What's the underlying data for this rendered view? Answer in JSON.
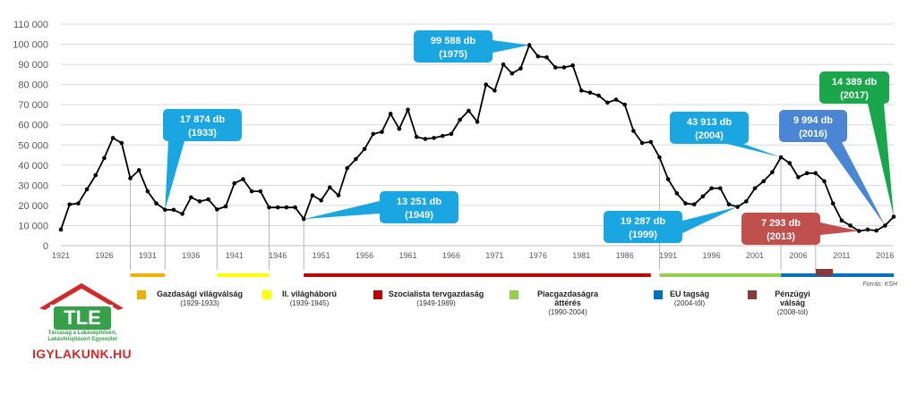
{
  "chart_data": {
    "type": "line",
    "ylim": [
      0,
      110000
    ],
    "yticks": [
      0,
      10000,
      20000,
      30000,
      40000,
      50000,
      60000,
      70000,
      80000,
      90000,
      100000,
      110000
    ],
    "ytick_labels": [
      "0",
      "10 000",
      "20 000",
      "30 000",
      "40 000",
      "50 000",
      "60 000",
      "70 000",
      "80 000",
      "90 000",
      "100 000",
      "110 000"
    ],
    "xlim": [
      1921,
      2017
    ],
    "xtick_labels": [
      "1921",
      "1926",
      "1931",
      "1936",
      "1941",
      "1946",
      "1951",
      "1956",
      "1961",
      "1966",
      "1971",
      "1976",
      "1981",
      "1986",
      "1991",
      "1996",
      "2001",
      "2006",
      "2011",
      "2016"
    ],
    "grid": true,
    "series": [
      {
        "color": "#000000",
        "x": [
          1921,
          1922,
          1923,
          1924,
          1925,
          1926,
          1927,
          1928,
          1929,
          1930,
          1931,
          1932,
          1933,
          1934,
          1935,
          1936,
          1937,
          1938,
          1939,
          1940,
          1941,
          1942,
          1943,
          1944,
          1945,
          1946,
          1947,
          1948,
          1949,
          1950,
          1951,
          1952,
          1953,
          1954,
          1955,
          1956,
          1957,
          1958,
          1959,
          1960,
          1961,
          1962,
          1963,
          1964,
          1965,
          1966,
          1967,
          1968,
          1969,
          1970,
          1971,
          1972,
          1973,
          1974,
          1975,
          1976,
          1977,
          1978,
          1979,
          1980,
          1981,
          1982,
          1983,
          1984,
          1985,
          1986,
          1987,
          1988,
          1989,
          1990,
          1991,
          1992,
          1993,
          1994,
          1995,
          1996,
          1997,
          1998,
          1999,
          2000,
          2001,
          2002,
          2003,
          2004,
          2005,
          2006,
          2007,
          2008,
          2009,
          2010,
          2011,
          2012,
          2013,
          2014,
          2015,
          2016,
          2017
        ],
        "values": [
          8000,
          20500,
          21000,
          28000,
          35000,
          43500,
          53500,
          51000,
          33500,
          37500,
          27000,
          21000,
          17874,
          17800,
          15800,
          24000,
          22000,
          23000,
          18000,
          19500,
          31000,
          33000,
          27000,
          27000,
          19000,
          19000,
          19000,
          19000,
          13251,
          25000,
          22500,
          29000,
          25000,
          38500,
          43000,
          48000,
          55500,
          56500,
          65500,
          58000,
          67500,
          54000,
          53000,
          53500,
          54500,
          55500,
          62500,
          67000,
          61500,
          80000,
          77000,
          90000,
          85500,
          88000,
          99588,
          94000,
          93500,
          88500,
          88500,
          89500,
          77000,
          76000,
          74500,
          71000,
          72500,
          70000,
          57000,
          51000,
          51500,
          43913,
          33000,
          26000,
          21000,
          20500,
          24500,
          28500,
          28500,
          20500,
          19287,
          22000,
          28500,
          32000,
          36500,
          43913,
          41000,
          34000,
          36000,
          36000,
          32000,
          21000,
          12500,
          10000,
          7293,
          8000,
          7500,
          9994,
          14389
        ]
      }
    ],
    "annotations": [
      {
        "text1": "17 874 db",
        "text2": "(1933)",
        "x": 1933,
        "y": 17874,
        "color": "#1aa6e0"
      },
      {
        "text1": "13 251 db",
        "text2": "(1949)",
        "x": 1949,
        "y": 13251,
        "color": "#1aa6e0"
      },
      {
        "text1": "99 588 db",
        "text2": "(1975)",
        "x": 1975,
        "y": 99588,
        "color": "#1aa6e0"
      },
      {
        "text1": "19 287 db",
        "text2": "(1999)",
        "x": 1999,
        "y": 19287,
        "color": "#1aa6e0"
      },
      {
        "text1": "43 913 db",
        "text2": "(2004)",
        "x": 2004,
        "y": 43913,
        "color": "#1aa6e0"
      },
      {
        "text1": "9 994 db",
        "text2": "(2016)",
        "x": 2016,
        "y": 9994,
        "color": "#4a86d4"
      },
      {
        "text1": "7 293 db",
        "text2": "(2013)",
        "x": 2013,
        "y": 7293,
        "color": "#c0504d"
      },
      {
        "text1": "14 389 db",
        "text2": "(2017)",
        "x": 2017,
        "y": 14389,
        "color": "#1aa64a"
      }
    ],
    "periods": [
      {
        "name": "Gazdasági világválság",
        "range": "(1929-1933)",
        "start": 1929,
        "end": 1933,
        "color": "#f0b000"
      },
      {
        "name": "II. világháború",
        "range": "(1939-1945)",
        "start": 1939,
        "end": 1945,
        "color": "#ffff00"
      },
      {
        "name": "Szocialista tervgazdaság",
        "range": "(1949-1989)",
        "start": 1949,
        "end": 1989,
        "color": "#c00000"
      },
      {
        "name": "Piacgazdaságra áttérés",
        "range": "(1990-2004)",
        "start": 1990,
        "end": 2004,
        "color": "#92d050"
      },
      {
        "name": "EU tagság",
        "range": "(2004-től)",
        "start": 2004,
        "end": 2017,
        "color": "#0070c0"
      },
      {
        "name": "Pénzügyi válság",
        "range": "(2008-tól)",
        "start": 2008,
        "end": 2010,
        "color": "#8b3a3a"
      }
    ]
  },
  "source": "Forrás: KSH",
  "logo": {
    "letters": "TLE",
    "subtitle": "Társaság a Lakásépítésért, Lakásfelújításért Egyesület",
    "url": "IGYLAKUNK.HU"
  }
}
